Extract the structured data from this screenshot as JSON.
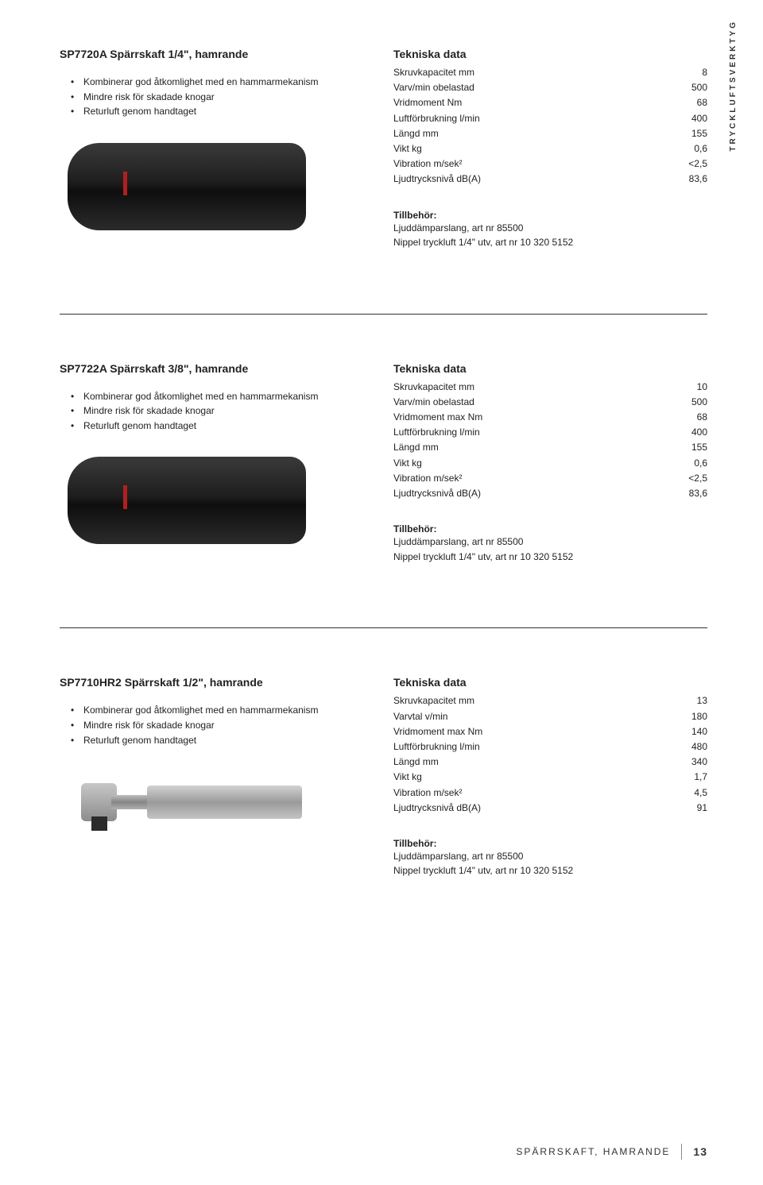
{
  "sideLabel": "TRYCKLUFTSVERKTYG",
  "products": [
    {
      "title": "SP7720A Spärrskaft 1/4\", hamrande",
      "features": [
        "Kombinerar god åtkomlighet med en hammarmekanism",
        "Mindre risk för skadade knogar",
        "Returluft genom handtaget"
      ],
      "specTitle": "Tekniska data",
      "specs": [
        {
          "label": "Skruvkapacitet mm",
          "value": "8"
        },
        {
          "label": "Varv/min obelastad",
          "value": "500"
        },
        {
          "label": "Vridmoment Nm",
          "value": "68"
        },
        {
          "label": "Luftförbrukning l/min",
          "value": "400"
        },
        {
          "label": "Längd mm",
          "value": "155"
        },
        {
          "label": "Vikt kg",
          "value": "0,6"
        },
        {
          "label": "Vibration m/sek²",
          "value": "<2,5"
        },
        {
          "label": "Ljudtrycksnivå dB(A)",
          "value": "83,6"
        }
      ],
      "accTitle": "Tillbehör:",
      "accessories": [
        "Ljuddämparslang, art nr 85500",
        "Nippel tryckluft 1/4\" utv, art nr 10 320 5152"
      ],
      "imgVariant": 1
    },
    {
      "title": "SP7722A Spärrskaft 3/8\", hamrande",
      "features": [
        "Kombinerar god åtkomlighet med en hammarmekanism",
        "Mindre risk för skadade knogar",
        "Returluft genom handtaget"
      ],
      "specTitle": "Tekniska data",
      "specs": [
        {
          "label": "Skruvkapacitet mm",
          "value": "10"
        },
        {
          "label": "Varv/min obelastad",
          "value": "500"
        },
        {
          "label": "Vridmoment max Nm",
          "value": "68"
        },
        {
          "label": "Luftförbrukning l/min",
          "value": "400"
        },
        {
          "label": "Längd mm",
          "value": "155"
        },
        {
          "label": "Vikt kg",
          "value": "0,6"
        },
        {
          "label": "Vibration m/sek²",
          "value": "<2,5"
        },
        {
          "label": "Ljudtrycksnivå dB(A)",
          "value": "83,6"
        }
      ],
      "accTitle": "Tillbehör:",
      "accessories": [
        "Ljuddämparslang, art nr 85500",
        "Nippel tryckluft 1/4\" utv, art nr 10 320 5152"
      ],
      "imgVariant": 1
    },
    {
      "title": "SP7710HR2 Spärrskaft 1/2\", hamrande",
      "features": [
        "Kombinerar god åtkomlighet med en hammarmekanism",
        "Mindre risk för skadade knogar",
        "Returluft genom handtaget"
      ],
      "specTitle": "Tekniska data",
      "specs": [
        {
          "label": "Skruvkapacitet mm",
          "value": "13"
        },
        {
          "label": "Varvtal v/min",
          "value": "180"
        },
        {
          "label": "Vridmoment max Nm",
          "value": "140"
        },
        {
          "label": "Luftförbrukning l/min",
          "value": "480"
        },
        {
          "label": "Längd mm",
          "value": "340"
        },
        {
          "label": "Vikt kg",
          "value": "1,7"
        },
        {
          "label": "Vibration m/sek²",
          "value": "4,5"
        },
        {
          "label": "Ljudtrycksnivå dB(A)",
          "value": "91"
        }
      ],
      "accTitle": "Tillbehör:",
      "accessories": [
        "Ljuddämparslang, art nr 85500",
        "Nippel tryckluft 1/4\" utv, art nr 10 320 5152"
      ],
      "imgVariant": 2
    }
  ],
  "footer": {
    "section": "SPÄRRSKAFT, HAMRANDE",
    "page": "13"
  }
}
